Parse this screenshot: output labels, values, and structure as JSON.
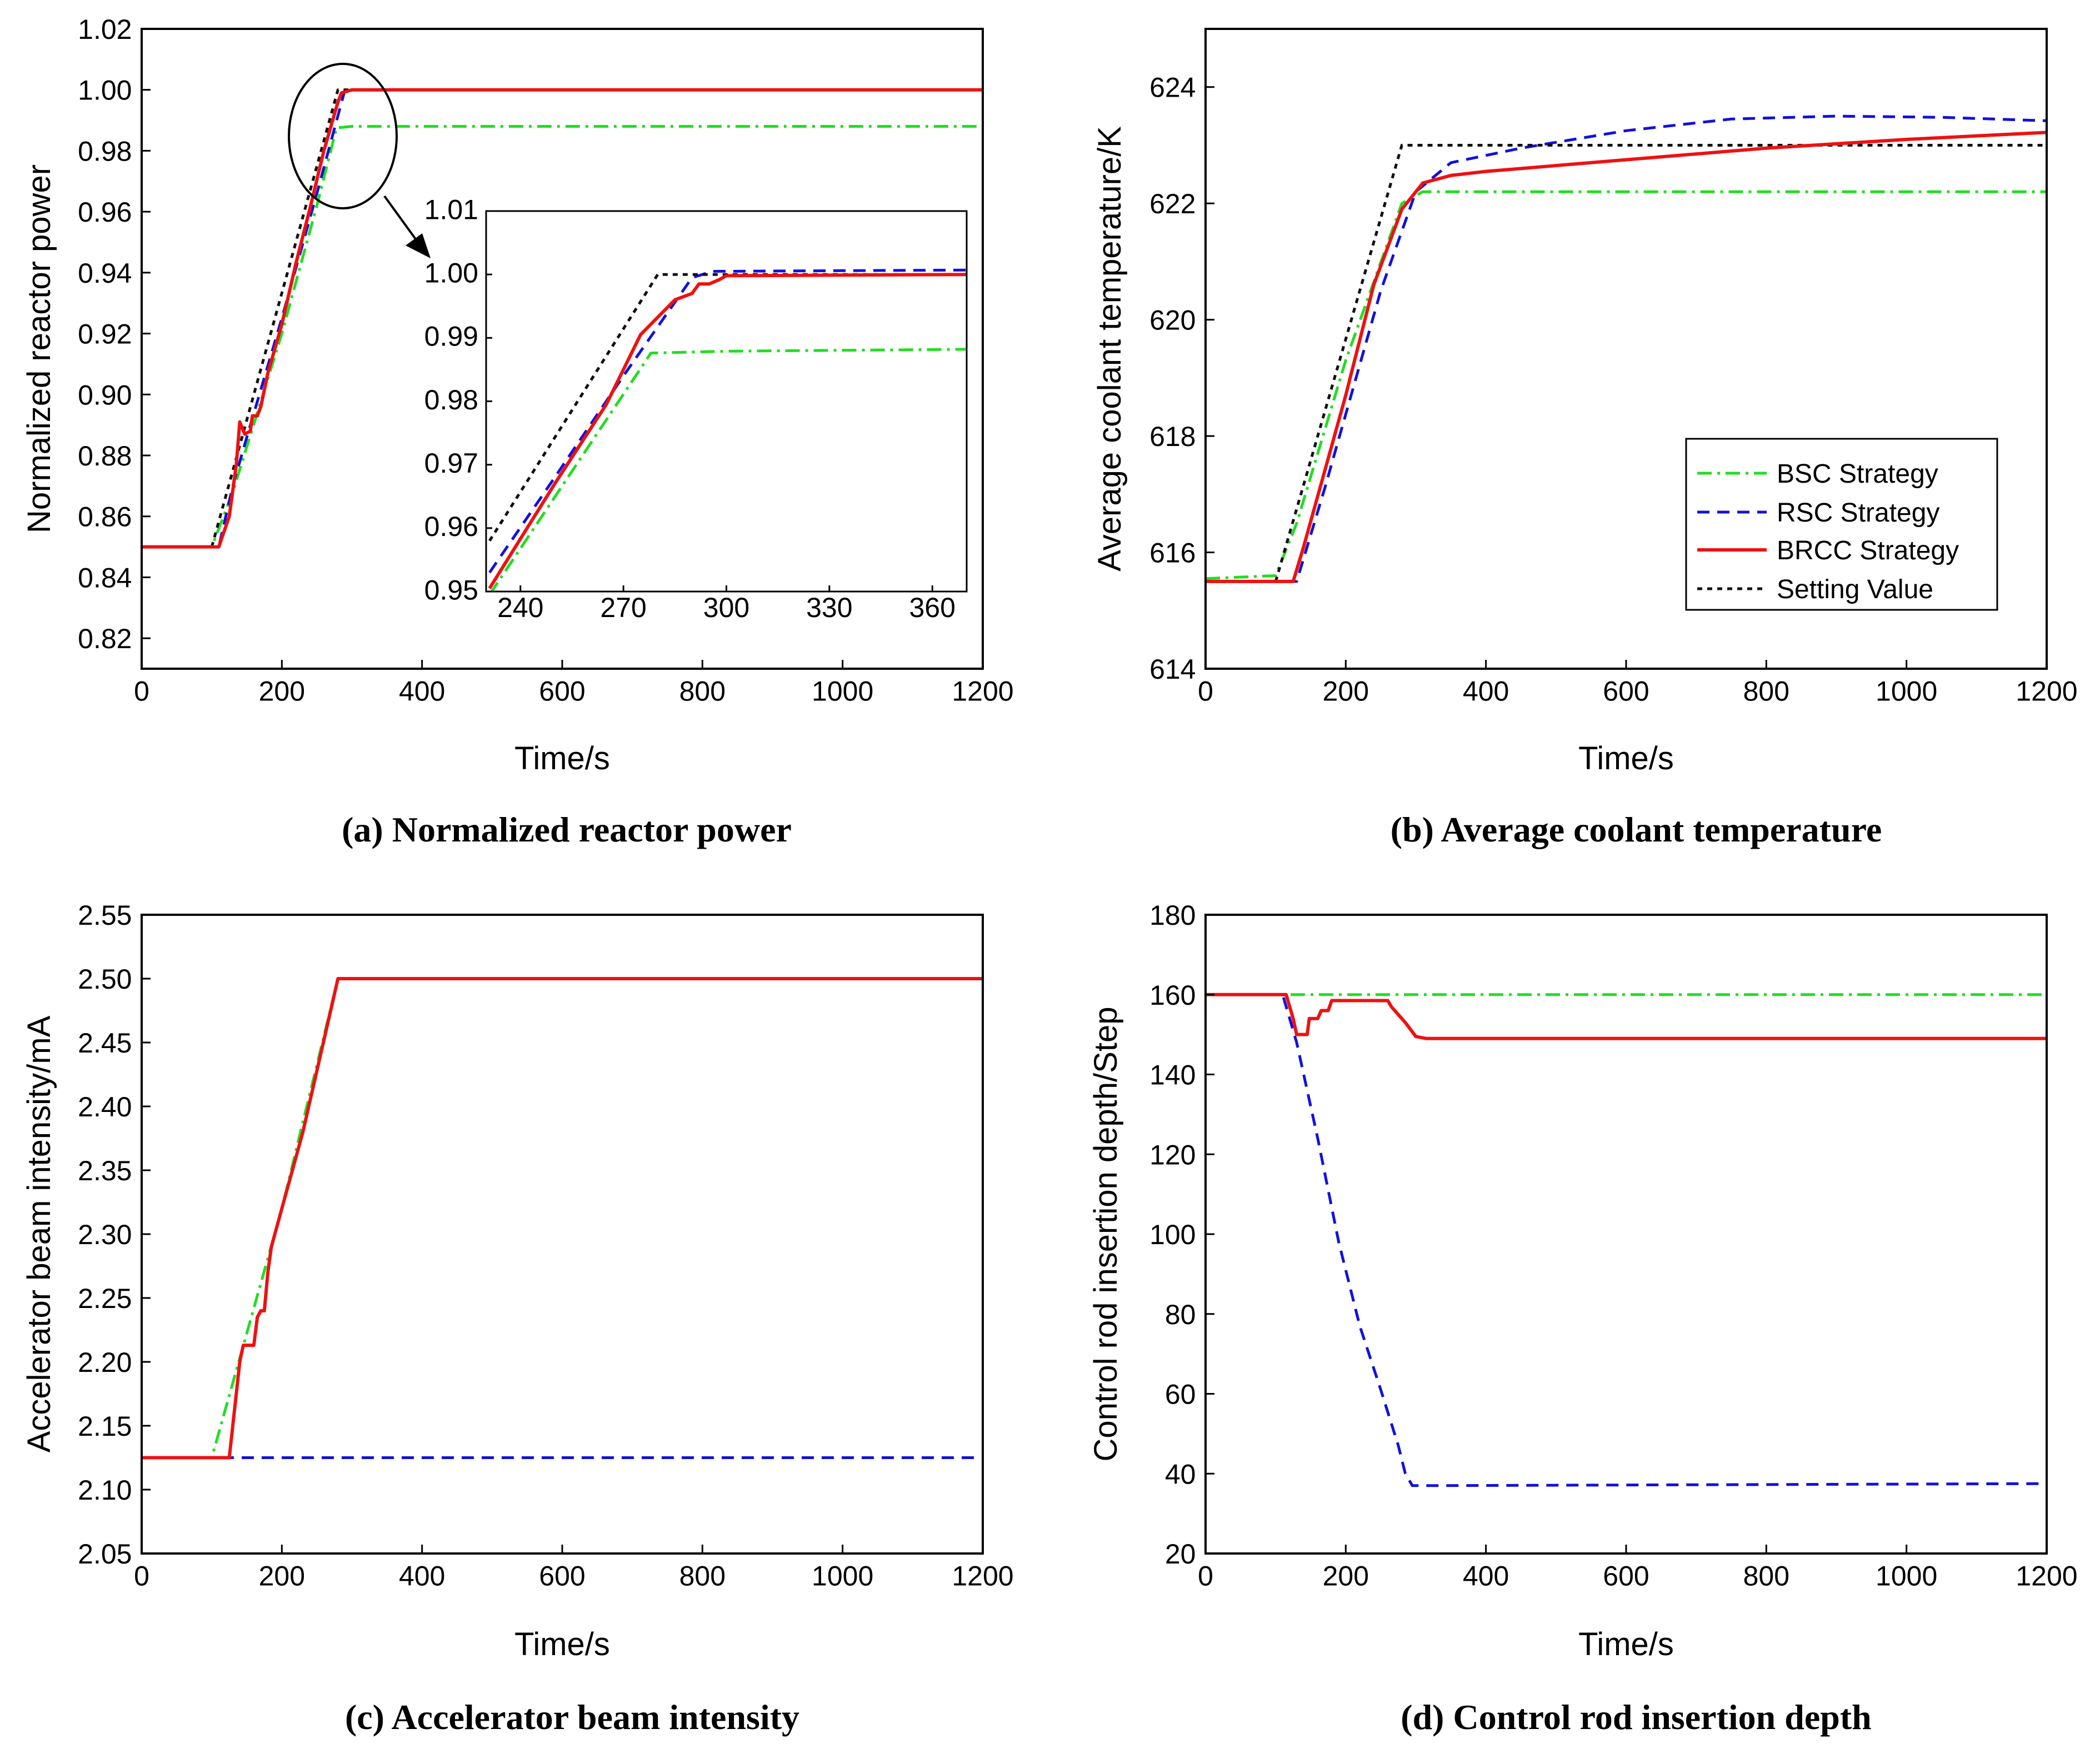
{
  "colors": {
    "bsc": "#22dd22",
    "rsc": "#1111dd",
    "brcc": "#ee1111",
    "setting": "#111111"
  },
  "legend": {
    "entries": [
      "BSC Strategy",
      "RSC Strategy",
      "BRCC Strategy",
      "Setting Value"
    ]
  },
  "chart_data": [
    {
      "id": "a",
      "type": "line",
      "caption": "(a) Normalized reactor power",
      "xlabel": "Time/s",
      "ylabel": "Normalized reactor power",
      "xlim": [
        0,
        1200
      ],
      "ylim": [
        0.81,
        1.02
      ],
      "xticks": [
        0,
        200,
        400,
        600,
        800,
        1000,
        1200
      ],
      "yticks": [
        0.82,
        0.84,
        0.86,
        0.88,
        0.9,
        0.92,
        0.94,
        0.96,
        0.98,
        1.0,
        1.02
      ],
      "ytick_labels": [
        "0.82",
        "0.84",
        "0.86",
        "0.88",
        "0.90",
        "0.92",
        "0.94",
        "0.96",
        "0.98",
        "1.00",
        "1.02"
      ],
      "series": [
        {
          "name": "BSC Strategy",
          "key": "bsc",
          "x": [
            0,
            100,
            130,
            200,
            250,
            278,
            300,
            400,
            1200
          ],
          "y": [
            0.85,
            0.85,
            0.868,
            0.92,
            0.962,
            0.9875,
            0.988,
            0.988,
            0.988
          ]
        },
        {
          "name": "RSC Strategy",
          "key": "rsc",
          "x": [
            0,
            110,
            130,
            150,
            200,
            250,
            290,
            300,
            1200
          ],
          "y": [
            0.85,
            0.85,
            0.87,
            0.886,
            0.925,
            0.966,
            1.0,
            1.0,
            1.0
          ]
        },
        {
          "name": "BRCC Strategy",
          "key": "brcc",
          "x": [
            0,
            110,
            125,
            135,
            140,
            147,
            155,
            158,
            165,
            170,
            180,
            200,
            220,
            240,
            260,
            280,
            285,
            300,
            1200
          ],
          "y": [
            0.85,
            0.85,
            0.86,
            0.877,
            0.891,
            0.887,
            0.888,
            0.893,
            0.893,
            0.896,
            0.907,
            0.923,
            0.943,
            0.961,
            0.98,
            0.996,
            0.999,
            1.0,
            1.0
          ]
        },
        {
          "name": "Setting Value",
          "key": "setting",
          "x": [
            0,
            100,
            280,
            1200
          ],
          "y": [
            0.85,
            0.85,
            1.0,
            1.0
          ]
        }
      ],
      "annotation": "circle around the ramp end, arrow to zoomed inset"
    },
    {
      "id": "a-inset",
      "type": "line",
      "xlim": [
        230,
        370
      ],
      "ylim": [
        0.95,
        1.01
      ],
      "xticks": [
        240,
        270,
        300,
        330,
        360
      ],
      "yticks": [
        0.95,
        0.96,
        0.97,
        0.98,
        0.99,
        1.0,
        1.01
      ],
      "ytick_labels": [
        "0.95",
        "0.96",
        "0.97",
        "0.98",
        "0.99",
        "1.00",
        "1.01"
      ],
      "series": [
        {
          "name": "BSC Strategy",
          "key": "bsc",
          "x": [
            231,
            278,
            300,
            370
          ],
          "y": [
            0.9495,
            0.9876,
            0.9879,
            0.9882
          ]
        },
        {
          "name": "RSC Strategy",
          "key": "rsc",
          "x": [
            231,
            250,
            270,
            290,
            296,
            370
          ],
          "y": [
            0.953,
            0.968,
            0.984,
            0.9995,
            1.0005,
            1.0007
          ]
        },
        {
          "name": "BRCC Strategy",
          "key": "brcc",
          "x": [
            231,
            250,
            265,
            275,
            285,
            290,
            292,
            295,
            298,
            300,
            370
          ],
          "y": [
            0.9505,
            0.967,
            0.9795,
            0.9905,
            0.996,
            0.997,
            0.9985,
            0.9985,
            0.9992,
            0.9998,
            1.0
          ]
        },
        {
          "name": "Setting Value",
          "key": "setting",
          "x": [
            231,
            280,
            370
          ],
          "y": [
            0.958,
            1.0,
            1.0
          ]
        }
      ]
    },
    {
      "id": "b",
      "type": "line",
      "caption": "(b) Average coolant temperature",
      "xlabel": "Time/s",
      "ylabel": "Average coolant temperature/K",
      "xlim": [
        0,
        1200
      ],
      "ylim": [
        614,
        625
      ],
      "xticks": [
        0,
        200,
        400,
        600,
        800,
        1000,
        1200
      ],
      "yticks": [
        614,
        616,
        618,
        620,
        622,
        624
      ],
      "ytick_labels": [
        "614",
        "616",
        "618",
        "620",
        "622",
        "624"
      ],
      "series": [
        {
          "name": "BSC Strategy",
          "key": "bsc",
          "x": [
            0,
            100,
            130,
            200,
            280,
            310,
            400,
            1200
          ],
          "y": [
            615.55,
            615.6,
            616.5,
            619.3,
            622.0,
            622.2,
            622.2,
            622.2
          ]
        },
        {
          "name": "RSC Strategy",
          "key": "rsc",
          "x": [
            0,
            130,
            170,
            250,
            300,
            350,
            450,
            600,
            750,
            900,
            1050,
            1200
          ],
          "y": [
            615.5,
            615.5,
            617.1,
            620.5,
            622.2,
            622.7,
            622.95,
            623.25,
            623.45,
            623.5,
            623.48,
            623.42
          ]
        },
        {
          "name": "BRCC Strategy",
          "key": "brcc",
          "x": [
            0,
            125,
            140,
            170,
            200,
            240,
            280,
            310,
            350,
            400,
            600,
            800,
            1000,
            1200
          ],
          "y": [
            615.5,
            615.5,
            616.1,
            617.4,
            618.7,
            620.6,
            621.9,
            622.35,
            622.48,
            622.55,
            622.75,
            622.95,
            623.1,
            623.22
          ]
        },
        {
          "name": "Setting Value",
          "key": "setting",
          "x": [
            0,
            100,
            280,
            1200
          ],
          "y": [
            615.5,
            615.5,
            623.0,
            623.0
          ]
        }
      ],
      "legend_position": "lower-right"
    },
    {
      "id": "c",
      "type": "line",
      "caption": "(c) Accelerator beam intensity",
      "xlabel": "Time/s",
      "ylabel": "Accelerator beam intensity/mA",
      "xlim": [
        0,
        1200
      ],
      "ylim": [
        2.05,
        2.55
      ],
      "xticks": [
        0,
        200,
        400,
        600,
        800,
        1000,
        1200
      ],
      "yticks": [
        2.05,
        2.1,
        2.15,
        2.2,
        2.25,
        2.3,
        2.35,
        2.4,
        2.45,
        2.5,
        2.55
      ],
      "ytick_labels": [
        "2.05",
        "2.10",
        "2.15",
        "2.20",
        "2.25",
        "2.30",
        "2.35",
        "2.40",
        "2.45",
        "2.50",
        "2.55"
      ],
      "series": [
        {
          "name": "BSC Strategy",
          "key": "bsc",
          "x": [
            0,
            100,
            200,
            280,
            1200
          ],
          "y": [
            2.125,
            2.125,
            2.32,
            2.5,
            2.5
          ]
        },
        {
          "name": "RSC Strategy",
          "key": "rsc",
          "x": [
            0,
            1200
          ],
          "y": [
            2.125,
            2.125
          ]
        },
        {
          "name": "BRCC Strategy",
          "key": "brcc",
          "x": [
            0,
            125,
            140,
            145,
            160,
            165,
            170,
            175,
            180,
            185,
            200,
            215,
            230,
            280,
            1200
          ],
          "y": [
            2.125,
            2.125,
            2.2,
            2.213,
            2.213,
            2.235,
            2.24,
            2.24,
            2.27,
            2.29,
            2.32,
            2.35,
            2.38,
            2.5,
            2.5
          ]
        }
      ]
    },
    {
      "id": "d",
      "type": "line",
      "caption": "(d) Control rod insertion depth",
      "xlabel": "Time/s",
      "ylabel": "Control rod insertion depth/Step",
      "xlim": [
        0,
        1200
      ],
      "ylim": [
        20,
        180
      ],
      "xticks": [
        0,
        200,
        400,
        600,
        800,
        1000,
        1200
      ],
      "yticks": [
        20,
        40,
        60,
        80,
        100,
        120,
        140,
        160,
        180
      ],
      "ytick_labels": [
        "20",
        "40",
        "60",
        "80",
        "100",
        "120",
        "140",
        "160",
        "180"
      ],
      "series": [
        {
          "name": "BSC Strategy",
          "key": "bsc",
          "x": [
            0,
            1200
          ],
          "y": [
            160,
            160
          ]
        },
        {
          "name": "RSC Strategy",
          "key": "rsc",
          "x": [
            0,
            110,
            130,
            160,
            190,
            220,
            250,
            275,
            285,
            295,
            320,
            1200
          ],
          "y": [
            160,
            160,
            148,
            124,
            98,
            77,
            61,
            47,
            40,
            37,
            37,
            37.5
          ]
        },
        {
          "name": "BRCC Strategy",
          "key": "brcc",
          "x": [
            0,
            115,
            125,
            130,
            145,
            148,
            160,
            165,
            175,
            180,
            195,
            260,
            265,
            285,
            300,
            315,
            1200
          ],
          "y": [
            160,
            160,
            154,
            150,
            150,
            154,
            154,
            156,
            156,
            158.5,
            158.5,
            158.5,
            157,
            153,
            149.5,
            149,
            149
          ]
        }
      ]
    }
  ]
}
